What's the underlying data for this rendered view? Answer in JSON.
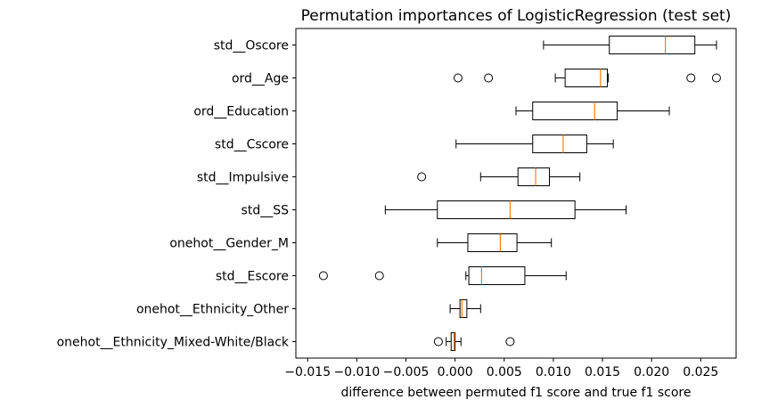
{
  "chart_data": {
    "type": "boxplot",
    "title": "Permutation importances of LogisticRegression (test set)",
    "xlabel": "difference between permuted f1 score and true f1 score",
    "ylabel": "",
    "xlim": [
      -0.0162,
      0.0286
    ],
    "xticks": [
      -0.015,
      -0.01,
      -0.005,
      0.0,
      0.005,
      0.01,
      0.015,
      0.02,
      0.025
    ],
    "xtick_labels": [
      "−0.015",
      "−0.010",
      "−0.005",
      "0.000",
      "0.005",
      "0.010",
      "0.015",
      "0.020",
      "0.025"
    ],
    "grid": false,
    "colors": {
      "median": "#ff7f0e",
      "box": "#000000"
    },
    "categories": [
      "std__Oscore",
      "ord__Age",
      "ord__Education",
      "std__Cscore",
      "std__Impulsive",
      "std__SS",
      "onehot__Gender_M",
      "std__Escore",
      "onehot__Ethnicity_Other",
      "onehot__Ethnicity_Mixed-White/Black"
    ],
    "boxes": [
      {
        "whisker_low": 0.009,
        "q1": 0.0157,
        "median": 0.0214,
        "q3": 0.0244,
        "whisker_high": 0.0266,
        "outliers": []
      },
      {
        "whisker_low": 0.0102,
        "q1": 0.0112,
        "median": 0.0148,
        "q3": 0.0155,
        "whisker_high": 0.0156,
        "outliers": [
          0.0003,
          0.0034,
          0.024,
          0.0266
        ]
      },
      {
        "whisker_low": 0.0062,
        "q1": 0.0079,
        "median": 0.0142,
        "q3": 0.0165,
        "whisker_high": 0.0218,
        "outliers": []
      },
      {
        "whisker_low": 0.0001,
        "q1": 0.0079,
        "median": 0.011,
        "q3": 0.0134,
        "whisker_high": 0.0161,
        "outliers": []
      },
      {
        "whisker_low": 0.0026,
        "q1": 0.0064,
        "median": 0.0082,
        "q3": 0.0096,
        "whisker_high": 0.0127,
        "outliers": [
          -0.0034
        ]
      },
      {
        "whisker_low": -0.0071,
        "q1": -0.0018,
        "median": 0.0056,
        "q3": 0.0122,
        "whisker_high": 0.0174,
        "outliers": []
      },
      {
        "whisker_low": -0.0018,
        "q1": 0.0013,
        "median": 0.0046,
        "q3": 0.0063,
        "whisker_high": 0.0098,
        "outliers": []
      },
      {
        "whisker_low": 0.0011,
        "q1": 0.0014,
        "median": 0.0027,
        "q3": 0.0071,
        "whisker_high": 0.0113,
        "outliers": [
          -0.0134,
          -0.0077
        ]
      },
      {
        "whisker_low": -0.0005,
        "q1": 0.0005,
        "median": 0.0007,
        "q3": 0.0012,
        "whisker_high": 0.0026,
        "outliers": []
      },
      {
        "whisker_low": -0.0009,
        "q1": -0.0004,
        "median": -0.0001,
        "q3": 0.0,
        "whisker_high": 0.0006,
        "outliers": [
          -0.0017,
          0.0056
        ]
      }
    ]
  }
}
